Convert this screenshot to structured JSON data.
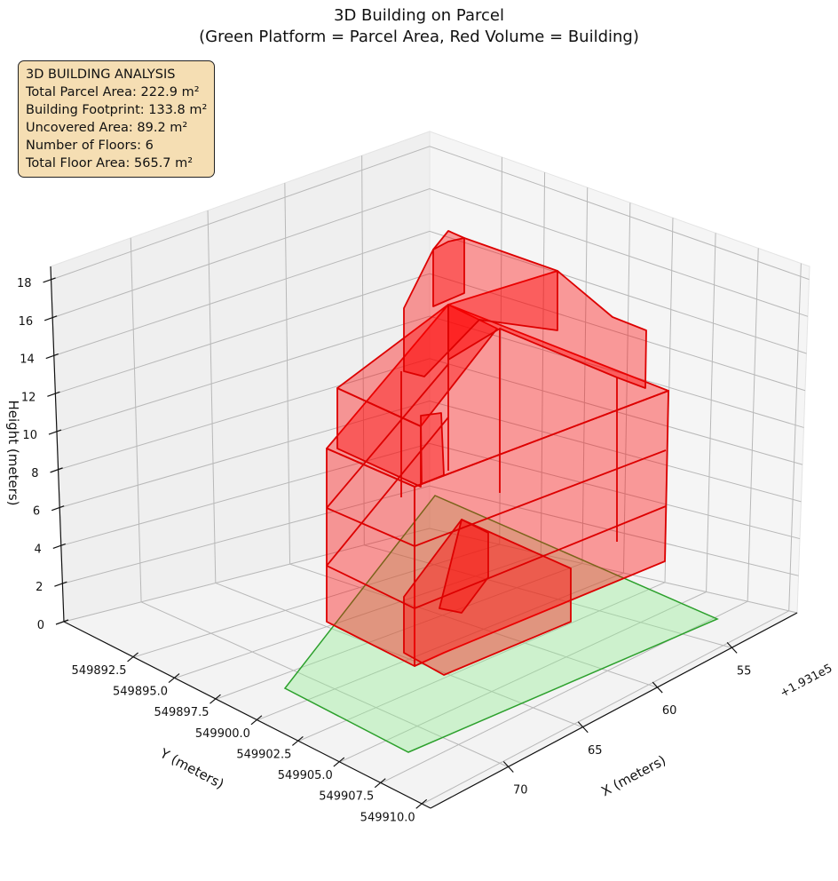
{
  "chart_data": {
    "type": "3d-polygon",
    "title": "3D Building on Parcel",
    "subtitle": "(Green Platform = Parcel Area, Red Volume = Building)",
    "xlabel": "X (meters)",
    "ylabel": "Y (meters)",
    "zlabel": "Height (meters)",
    "x_offset_label": "+1.931e5",
    "xlim": [
      50.6,
      75.2
    ],
    "ylim": [
      549888.27,
      549910.5
    ],
    "zlim": [
      0,
      18.7
    ],
    "xticks": [
      55,
      60,
      65,
      70
    ],
    "xtick_labels": [
      "55",
      "60",
      "65",
      "70"
    ],
    "yticks": [
      549892.5,
      549895.0,
      549897.5,
      549900.0,
      549902.5,
      549905.0,
      549907.5,
      549910.0
    ],
    "ytick_labels": [
      "549892.5",
      "549895.0",
      "549897.5",
      "549900.0",
      "549902.5",
      "549905.0",
      "549907.5",
      "549910.0"
    ],
    "zticks": [
      0,
      2,
      4,
      6,
      8,
      10,
      12,
      14,
      16,
      18
    ],
    "ztick_labels": [
      "0",
      "2",
      "4",
      "6",
      "8",
      "10",
      "12",
      "14",
      "16",
      "18"
    ],
    "grid": true,
    "colors": {
      "parcel": "#90ee90",
      "parcel_edge": "#2ca02c",
      "building": "#ff0000",
      "building_edge": "#dd0000",
      "infobox": "#f5deb3"
    },
    "series": [
      {
        "name": "Parcel Area",
        "kind": "platform",
        "z": 0
      },
      {
        "name": "Building",
        "kind": "volume",
        "floors": 6
      }
    ]
  },
  "infobox": {
    "heading": "3D BUILDING ANALYSIS",
    "lines": [
      "Total Parcel Area: 222.9 m²",
      "Building Footprint: 133.8 m²",
      "Uncovered Area: 89.2 m²",
      "Number of Floors: 6",
      "Total Floor Area: 565.7 m²"
    ]
  }
}
